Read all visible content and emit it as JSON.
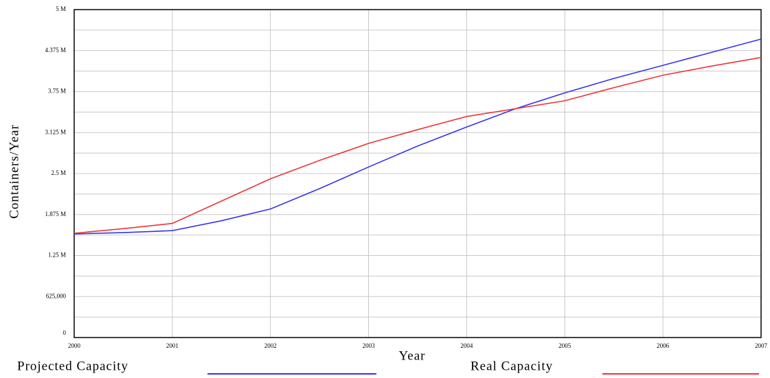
{
  "chart_data": {
    "type": "line",
    "xlabel": "Year",
    "ylabel": "Containers/Year",
    "x": [
      2000,
      2000.5,
      2001,
      2001.5,
      2002,
      2002.5,
      2003,
      2003.5,
      2004,
      2004.5,
      2005,
      2005.5,
      2006,
      2006.5,
      2007
    ],
    "series": [
      {
        "name": "Projected Capacity",
        "color": "#3333ee",
        "values": [
          1580000,
          1600000,
          1630000,
          1780000,
          1960000,
          2270000,
          2600000,
          2920000,
          3210000,
          3490000,
          3730000,
          3950000,
          4150000,
          4350000,
          4550000
        ]
      },
      {
        "name": "Real Capacity",
        "color": "#ee3333",
        "values": [
          1590000,
          1660000,
          1740000,
          2080000,
          2420000,
          2700000,
          2960000,
          3170000,
          3370000,
          3490000,
          3610000,
          3810000,
          4000000,
          4140000,
          4270000
        ]
      }
    ],
    "xlim": [
      2000,
      2007
    ],
    "xticks": [
      2000,
      2001,
      2002,
      2003,
      2004,
      2005,
      2006,
      2007
    ],
    "ylim": [
      0,
      5000000
    ],
    "yticks": [
      0,
      {
        "value": 625000,
        "label": "625,000"
      },
      {
        "value": 1250000,
        "label": "1.25 M"
      },
      {
        "value": 1875000,
        "label": "1.875 M"
      },
      {
        "value": 2500000,
        "label": "2.5 M"
      },
      {
        "value": 3125000,
        "label": "3.125 M"
      },
      {
        "value": 3750000,
        "label": "3.75 M"
      },
      {
        "value": 4375000,
        "label": "4.375 M"
      },
      {
        "value": 5000000,
        "label": "5 M"
      }
    ],
    "yminorticks": [
      312500,
      937500,
      1562500,
      2187500,
      2812500,
      3437500,
      4062500,
      4687500
    ],
    "grid": true,
    "legend": "bottom"
  }
}
